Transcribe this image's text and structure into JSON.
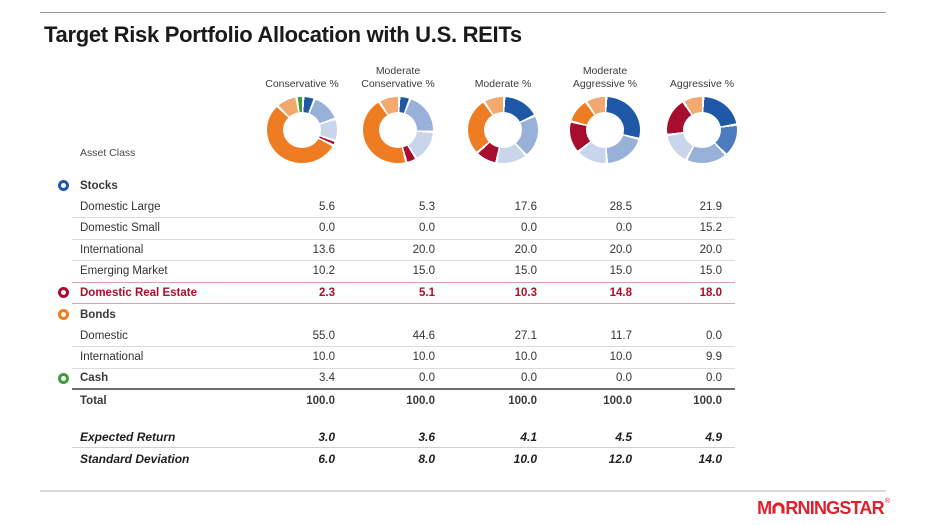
{
  "page": {
    "title": "Target Risk Portfolio Allocation with U.S. REITs"
  },
  "brand": {
    "logo_prefix": "M",
    "logo_suffix": "RNINGSTAR",
    "registered_mark": "®",
    "logo_color": "#e0202a",
    "o_glyph": "arch-icon"
  },
  "colors": {
    "accent_red_text": "#aa0e2d",
    "bullets": {
      "stocks": "#2058a8",
      "realEstate": "#a60d2e",
      "bonds": "#ee7c22",
      "cash": "#3f9c38"
    },
    "dividers": {
      "light": "#dcdcdc",
      "red": "#dfa1ad",
      "dark": "#6e6e6e"
    }
  },
  "table": {
    "header_label": "Asset Class",
    "columns": [
      {
        "line1": "",
        "line2": "Conservative %"
      },
      {
        "line1": "Moderate",
        "line2": "Conservative %"
      },
      {
        "line1": "",
        "line2": "Moderate %"
      },
      {
        "line1": "Moderate",
        "line2": "Aggressive %"
      },
      {
        "line1": "",
        "line2": "Aggressive %"
      }
    ],
    "rows": [
      {
        "label": "Stocks",
        "style": "section",
        "bullet": "stocks",
        "values": null,
        "divider": "none"
      },
      {
        "label": "Domestic Large",
        "style": "sub",
        "bullet": null,
        "values": [
          "5.6",
          "5.3",
          "17.6",
          "28.5",
          "21.9"
        ],
        "divider": "light"
      },
      {
        "label": "Domestic Small",
        "style": "sub",
        "bullet": null,
        "values": [
          "0.0",
          "0.0",
          "0.0",
          "0.0",
          "15.2"
        ],
        "divider": "light"
      },
      {
        "label": "International",
        "style": "sub",
        "bullet": null,
        "values": [
          "13.6",
          "20.0",
          "20.0",
          "20.0",
          "20.0"
        ],
        "divider": "light"
      },
      {
        "label": "Emerging Market",
        "style": "sub",
        "bullet": null,
        "values": [
          "10.2",
          "15.0",
          "15.0",
          "15.0",
          "15.0"
        ],
        "divider": "red"
      },
      {
        "label": "Domestic Real Estate",
        "style": "highlight",
        "bullet": "realEstate",
        "values": [
          "2.3",
          "5.1",
          "10.3",
          "14.8",
          "18.0"
        ],
        "divider": "red"
      },
      {
        "label": "Bonds",
        "style": "section",
        "bullet": "bonds",
        "values": null,
        "divider": "none"
      },
      {
        "label": "Domestic",
        "style": "sub",
        "bullet": null,
        "values": [
          "55.0",
          "44.6",
          "27.1",
          "11.7",
          "0.0"
        ],
        "divider": "light"
      },
      {
        "label": "International",
        "style": "sub",
        "bullet": null,
        "values": [
          "10.0",
          "10.0",
          "10.0",
          "10.0",
          "9.9"
        ],
        "divider": "light"
      },
      {
        "label": "Cash",
        "style": "section",
        "bullet": "cash",
        "values": [
          "3.4",
          "0.0",
          "0.0",
          "0.0",
          "0.0"
        ],
        "divider": "dark"
      },
      {
        "label": "Total",
        "style": "total",
        "bullet": null,
        "values": [
          "100.0",
          "100.0",
          "100.0",
          "100.0",
          "100.0"
        ],
        "divider": "none"
      },
      {
        "label": "Expected Return",
        "style": "stat",
        "bullet": null,
        "values": [
          "3.0",
          "3.6",
          "4.1",
          "4.5",
          "4.9"
        ],
        "divider": "stat",
        "gap_before": true
      },
      {
        "label": "Standard Deviation",
        "style": "stat",
        "bullet": null,
        "values": [
          "6.0",
          "8.0",
          "10.0",
          "12.0",
          "14.0"
        ],
        "divider": "none"
      }
    ]
  },
  "chart_data": {
    "type": "pie",
    "variant": "donut",
    "legend_position": "none",
    "donut_centers_x": [
      302,
      398,
      503,
      605,
      702
    ],
    "segment_labels": [
      "Domestic Large Stock",
      "Domestic Small Stock",
      "International Stock",
      "Emerging Market Stock",
      "Domestic Real Estate",
      "Domestic Bonds",
      "International Bonds",
      "Cash"
    ],
    "segment_colors": [
      "#2058a8",
      "#4d7cbe",
      "#97b1d9",
      "#c9d5ea",
      "#a60d2e",
      "#ee7c22",
      "#f3a86e",
      "#3f9c38"
    ],
    "series": [
      {
        "name": "Conservative %",
        "values": [
          5.6,
          0.0,
          13.6,
          10.2,
          2.3,
          55.0,
          10.0,
          3.4
        ]
      },
      {
        "name": "Moderate Conservative %",
        "values": [
          5.3,
          0.0,
          20.0,
          15.0,
          5.1,
          44.6,
          10.0,
          0.0
        ]
      },
      {
        "name": "Moderate %",
        "values": [
          17.6,
          0.0,
          20.0,
          15.0,
          10.3,
          27.1,
          10.0,
          0.0
        ]
      },
      {
        "name": "Moderate Aggressive %",
        "values": [
          28.5,
          0.0,
          20.0,
          15.0,
          14.8,
          11.7,
          10.0,
          0.0
        ]
      },
      {
        "name": "Aggressive %",
        "values": [
          21.9,
          15.2,
          20.0,
          15.0,
          18.0,
          0.0,
          9.9,
          0.0
        ]
      }
    ],
    "stats_rows": [
      {
        "label": "Expected Return",
        "values": [
          3.0,
          3.6,
          4.1,
          4.5,
          4.9
        ]
      },
      {
        "label": "Standard Deviation",
        "values": [
          6.0,
          8.0,
          10.0,
          12.0,
          14.0
        ]
      }
    ]
  }
}
